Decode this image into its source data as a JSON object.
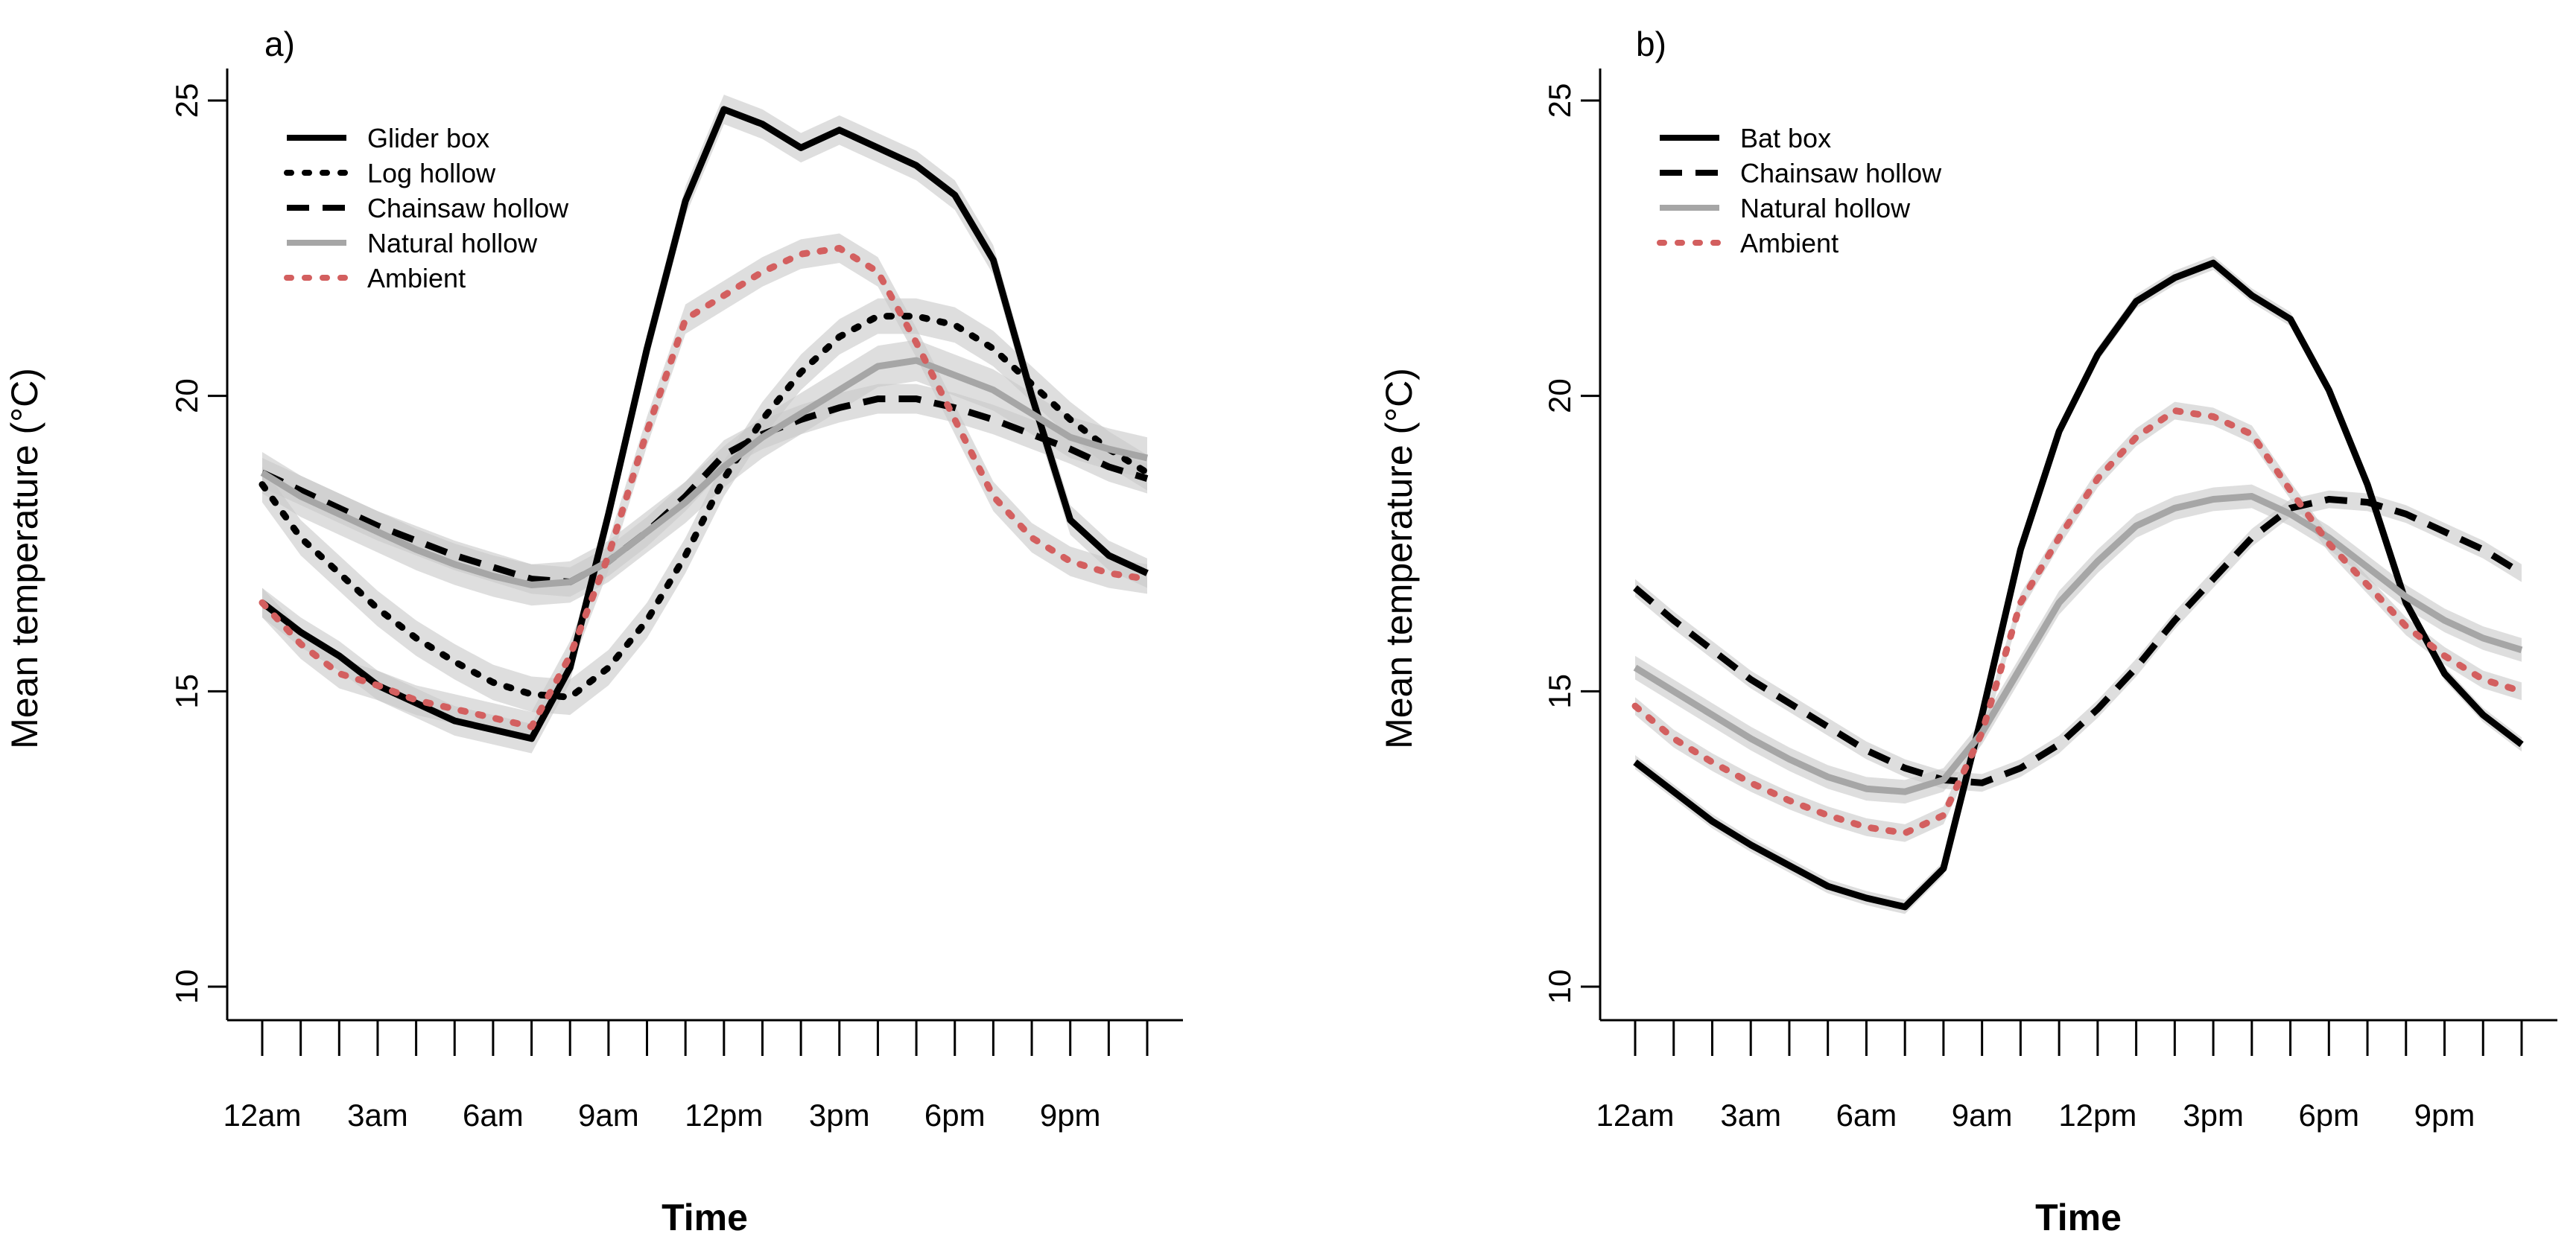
{
  "chart_data": [
    {
      "type": "line",
      "panel_label": "a)",
      "title": "",
      "xlabel": "Time",
      "ylabel": "Mean temperature (°C)",
      "ylim": [
        10,
        25
      ],
      "yticks": [
        10,
        15,
        20,
        25
      ],
      "xlim": [
        0,
        23
      ],
      "x": [
        0,
        1,
        2,
        3,
        4,
        5,
        6,
        7,
        8,
        9,
        10,
        11,
        12,
        13,
        14,
        15,
        16,
        17,
        18,
        19,
        20,
        21,
        22,
        23
      ],
      "xtick_count": 24,
      "xtick_labels": [
        {
          "x": 0,
          "label": "12am"
        },
        {
          "x": 3,
          "label": "3am"
        },
        {
          "x": 6,
          "label": "6am"
        },
        {
          "x": 9,
          "label": "9am"
        },
        {
          "x": 12,
          "label": "12pm"
        },
        {
          "x": 15,
          "label": "3pm"
        },
        {
          "x": 18,
          "label": "6pm"
        },
        {
          "x": 21,
          "label": "9pm"
        }
      ],
      "legend_position": "top-left",
      "series": [
        {
          "name": "Glider box",
          "style": "solid",
          "color": "#000000",
          "band": 0.25,
          "values": [
            16.5,
            16.0,
            15.6,
            15.1,
            14.8,
            14.5,
            14.35,
            14.2,
            15.4,
            18.0,
            20.8,
            23.3,
            24.85,
            24.6,
            24.2,
            24.5,
            24.2,
            23.9,
            23.4,
            22.3,
            20.0,
            17.9,
            17.3,
            17.0
          ]
        },
        {
          "name": "Log hollow",
          "style": "dot",
          "color": "#000000",
          "band": 0.3,
          "values": [
            18.5,
            17.6,
            17.0,
            16.4,
            15.9,
            15.5,
            15.15,
            14.95,
            14.9,
            15.4,
            16.2,
            17.3,
            18.6,
            19.6,
            20.4,
            21.0,
            21.35,
            21.35,
            21.2,
            20.8,
            20.2,
            19.6,
            19.1,
            18.7
          ]
        },
        {
          "name": "Chainsaw hollow",
          "style": "dash",
          "color": "#000000",
          "band": 0.25,
          "values": [
            18.7,
            18.4,
            18.1,
            17.8,
            17.55,
            17.3,
            17.1,
            16.9,
            16.85,
            17.2,
            17.7,
            18.3,
            19.0,
            19.35,
            19.6,
            19.8,
            19.95,
            19.95,
            19.8,
            19.6,
            19.35,
            19.1,
            18.8,
            18.6
          ]
        },
        {
          "name": "Natural hollow",
          "style": "solid",
          "color": "#a6a6a6",
          "band": 0.35,
          "values": [
            18.7,
            18.3,
            18.0,
            17.7,
            17.4,
            17.15,
            16.95,
            16.8,
            16.85,
            17.2,
            17.7,
            18.2,
            18.8,
            19.3,
            19.7,
            20.1,
            20.5,
            20.6,
            20.35,
            20.1,
            19.7,
            19.3,
            19.1,
            18.95
          ]
        },
        {
          "name": "Ambient",
          "style": "dot",
          "color": "#d35f5f",
          "band": 0.25,
          "values": [
            16.5,
            15.8,
            15.3,
            15.1,
            14.85,
            14.7,
            14.55,
            14.4,
            15.6,
            17.3,
            19.4,
            21.3,
            21.7,
            22.1,
            22.4,
            22.5,
            22.1,
            20.9,
            19.6,
            18.3,
            17.6,
            17.2,
            17.0,
            16.9
          ]
        }
      ]
    },
    {
      "type": "line",
      "panel_label": "b)",
      "title": "",
      "xlabel": "Time",
      "ylabel": "Mean temperature (°C)",
      "ylim": [
        10,
        25
      ],
      "yticks": [
        10,
        15,
        20,
        25
      ],
      "xlim": [
        0,
        23
      ],
      "x": [
        0,
        1,
        2,
        3,
        4,
        5,
        6,
        7,
        8,
        9,
        10,
        11,
        12,
        13,
        14,
        15,
        16,
        17,
        18,
        19,
        20,
        21,
        22,
        23
      ],
      "xtick_count": 24,
      "xtick_labels": [
        {
          "x": 0,
          "label": "12am"
        },
        {
          "x": 3,
          "label": "3am"
        },
        {
          "x": 6,
          "label": "6am"
        },
        {
          "x": 9,
          "label": "9am"
        },
        {
          "x": 12,
          "label": "12pm"
        },
        {
          "x": 15,
          "label": "3pm"
        },
        {
          "x": 18,
          "label": "6pm"
        },
        {
          "x": 21,
          "label": "9pm"
        }
      ],
      "legend_position": "top-left",
      "series": [
        {
          "name": "Bat box",
          "style": "solid",
          "color": "#000000",
          "band": 0.12,
          "values": [
            13.8,
            13.3,
            12.8,
            12.4,
            12.05,
            11.7,
            11.5,
            11.35,
            12.0,
            14.6,
            17.4,
            19.4,
            20.7,
            21.6,
            22.0,
            22.25,
            21.7,
            21.3,
            20.1,
            18.5,
            16.5,
            15.3,
            14.6,
            14.1
          ]
        },
        {
          "name": "Chainsaw hollow",
          "style": "dash",
          "color": "#000000",
          "band": 0.15,
          "values": [
            16.75,
            16.2,
            15.7,
            15.2,
            14.8,
            14.4,
            14.0,
            13.7,
            13.5,
            13.45,
            13.7,
            14.1,
            14.7,
            15.4,
            16.2,
            16.9,
            17.6,
            18.1,
            18.25,
            18.2,
            18.0,
            17.7,
            17.4,
            17.0
          ]
        },
        {
          "name": "Natural hollow",
          "style": "solid",
          "color": "#a6a6a6",
          "band": 0.2,
          "values": [
            15.4,
            15.0,
            14.6,
            14.2,
            13.85,
            13.55,
            13.35,
            13.3,
            13.5,
            14.3,
            15.4,
            16.5,
            17.2,
            17.8,
            18.1,
            18.25,
            18.3,
            18.0,
            17.6,
            17.1,
            16.6,
            16.2,
            15.9,
            15.7
          ]
        },
        {
          "name": "Ambient",
          "style": "dot",
          "color": "#d35f5f",
          "band": 0.15,
          "values": [
            14.75,
            14.2,
            13.8,
            13.45,
            13.15,
            12.9,
            12.7,
            12.6,
            12.9,
            14.3,
            16.5,
            17.6,
            18.6,
            19.3,
            19.75,
            19.65,
            19.35,
            18.4,
            17.5,
            16.8,
            16.1,
            15.6,
            15.2,
            15.0
          ]
        }
      ]
    }
  ]
}
